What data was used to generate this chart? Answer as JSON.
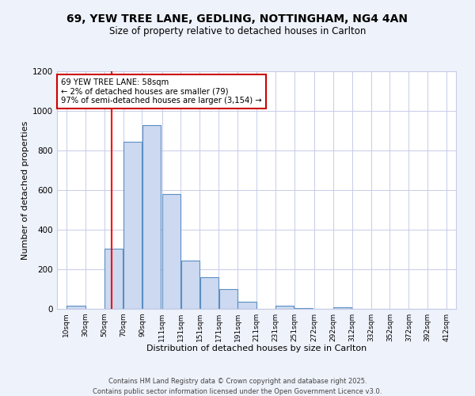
{
  "title_line1": "69, YEW TREE LANE, GEDLING, NOTTINGHAM, NG4 4AN",
  "title_line2": "Size of property relative to detached houses in Carlton",
  "xlabel": "Distribution of detached houses by size in Carlton",
  "ylabel": "Number of detached properties",
  "bar_left_edges": [
    10,
    30,
    50,
    70,
    90,
    111,
    131,
    151,
    171,
    191,
    211,
    231,
    251,
    272,
    292,
    312,
    332,
    352,
    372,
    392
  ],
  "bar_widths": [
    20,
    20,
    20,
    20,
    20,
    20,
    20,
    20,
    20,
    20,
    20,
    20,
    20,
    20,
    20,
    20,
    20,
    20,
    20,
    20
  ],
  "bar_heights": [
    15,
    0,
    305,
    845,
    930,
    580,
    245,
    160,
    100,
    35,
    0,
    15,
    5,
    0,
    10,
    0,
    0,
    0,
    0,
    0
  ],
  "bar_color": "#ccd9f0",
  "bar_edge_color": "#5a8fc3",
  "ylim": [
    0,
    1200
  ],
  "yticks": [
    0,
    200,
    400,
    600,
    800,
    1000,
    1200
  ],
  "x_tick_labels": [
    "10sqm",
    "30sqm",
    "50sqm",
    "70sqm",
    "90sqm",
    "111sqm",
    "131sqm",
    "151sqm",
    "171sqm",
    "191sqm",
    "211sqm",
    "231sqm",
    "251sqm",
    "272sqm",
    "292sqm",
    "312sqm",
    "332sqm",
    "352sqm",
    "372sqm",
    "392sqm",
    "412sqm"
  ],
  "x_tick_positions": [
    10,
    30,
    50,
    70,
    90,
    111,
    131,
    151,
    171,
    191,
    211,
    231,
    251,
    272,
    292,
    312,
    332,
    352,
    372,
    392,
    412
  ],
  "red_line_x": 58,
  "annotation_title": "69 YEW TREE LANE: 58sqm",
  "annotation_line2": "← 2% of detached houses are smaller (79)",
  "annotation_line3": "97% of semi-detached houses are larger (3,154) →",
  "footer_line1": "Contains HM Land Registry data © Crown copyright and database right 2025.",
  "footer_line2": "Contains public sector information licensed under the Open Government Licence v3.0.",
  "bg_color": "#eef2fb",
  "plot_bg_color": "#ffffff",
  "grid_color": "#c8cce8"
}
